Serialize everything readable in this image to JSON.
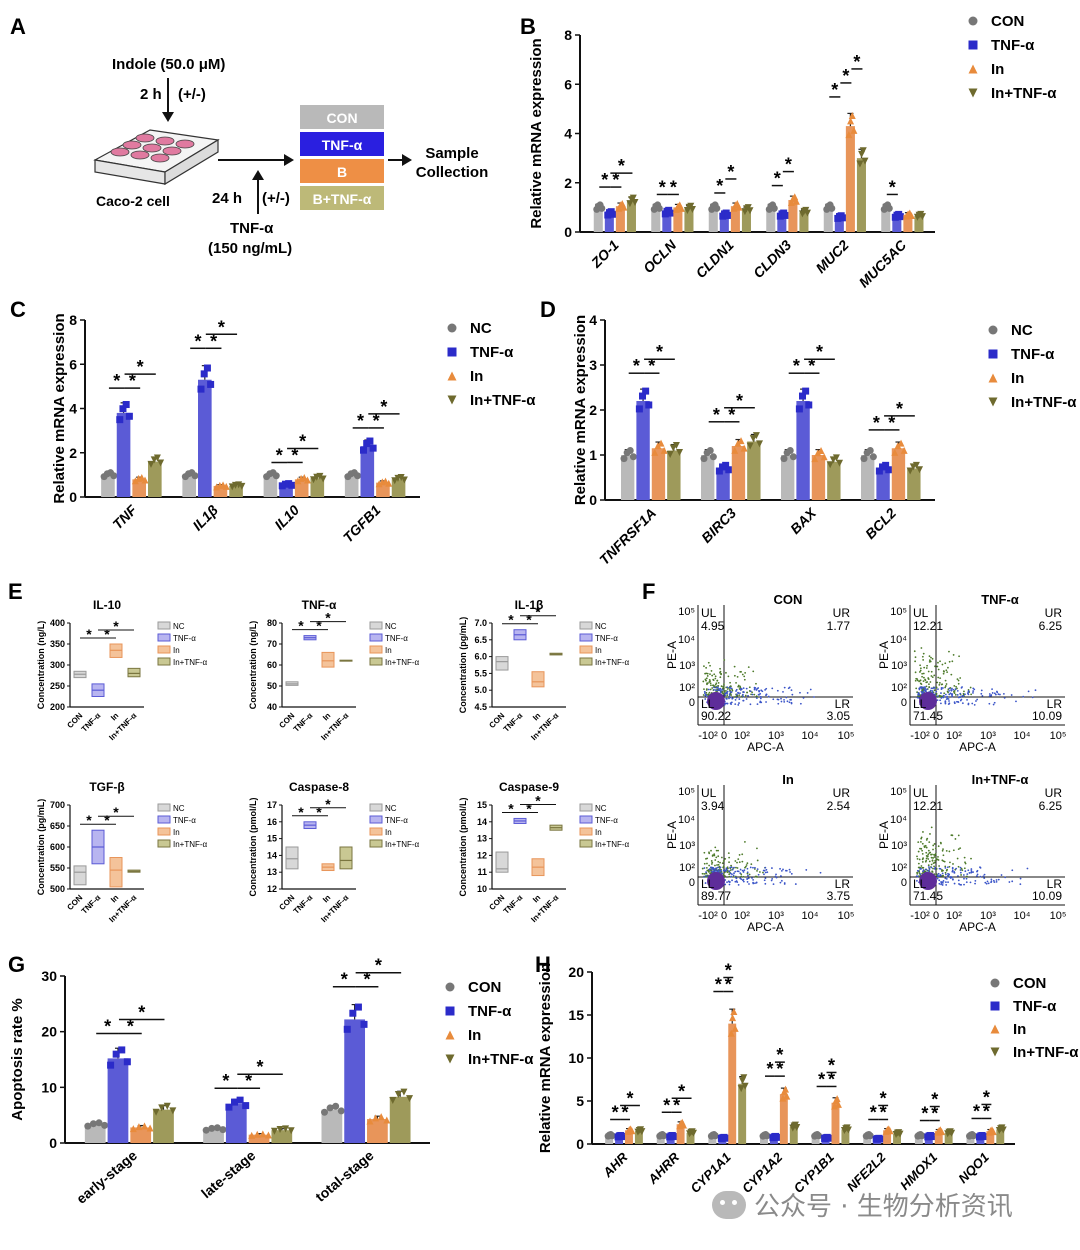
{
  "colors": {
    "CON": "#b9b9b9",
    "TNF": "#5b5bd6",
    "In": "#e8955a",
    "InTNF": "#9e9a5b",
    "dotCON": "#777777",
    "dotTNF": "#2b2bc9",
    "dotIn": "#e88b3c",
    "dotInTNF": "#6e6a2e"
  },
  "panelA": {
    "letter": "A",
    "indole": "Indole (50.0 μM)",
    "time1": "2 h",
    "pm1": "(+/-)",
    "cell": "Caco-2 cell",
    "time2": "24 h",
    "pm2": "(+/-)",
    "tnf": "TNF-α",
    "tnfconc": "(150 ng/mL)",
    "boxes": [
      "CON",
      "TNF-α",
      "B",
      "B+TNF-α"
    ],
    "sample1": "Sample",
    "sample2": "Collection"
  },
  "chart_data": [
    {
      "id": "B",
      "type": "bar",
      "ylabel": "Relative mRNA expression",
      "ylim": [
        0,
        8
      ],
      "yticks": [
        0,
        2,
        4,
        6,
        8
      ],
      "categories": [
        "ZO-1",
        "OCLN",
        "CLDN1",
        "CLDN3",
        "MUC2",
        "MUC5AC"
      ],
      "legend": [
        "CON",
        "TNF-α",
        "In",
        "In+TNF-α"
      ],
      "series": [
        {
          "name": "CON",
          "values": [
            1.0,
            1.0,
            1.0,
            1.0,
            1.0,
            1.0
          ]
        },
        {
          "name": "TNF-α",
          "values": [
            0.75,
            0.8,
            0.7,
            0.7,
            0.6,
            0.65
          ]
        },
        {
          "name": "In",
          "values": [
            1.05,
            1.0,
            1.05,
            1.3,
            4.3,
            0.7
          ]
        },
        {
          "name": "In+TNF-α",
          "values": [
            1.25,
            0.95,
            0.9,
            0.8,
            3.0,
            0.65
          ]
        }
      ]
    },
    {
      "id": "C",
      "type": "bar",
      "ylabel": "Relative mRNA expression",
      "ylim": [
        0,
        8
      ],
      "yticks": [
        0,
        2,
        4,
        6,
        8
      ],
      "categories": [
        "TNF",
        "IL1β",
        "IL10",
        "TGFB1"
      ],
      "legend": [
        "NC",
        "TNF-α",
        "In",
        "In+TNF-α"
      ],
      "series": [
        {
          "name": "NC",
          "values": [
            1.0,
            1.0,
            1.0,
            1.0
          ]
        },
        {
          "name": "TNF-α",
          "values": [
            3.8,
            5.3,
            0.55,
            2.3
          ]
        },
        {
          "name": "In",
          "values": [
            0.8,
            0.5,
            0.8,
            0.65
          ]
        },
        {
          "name": "In+TNF-α",
          "values": [
            1.6,
            0.5,
            0.85,
            0.8
          ]
        }
      ]
    },
    {
      "id": "D",
      "type": "bar",
      "ylabel": "Relative mRNA expression",
      "ylim": [
        0,
        4
      ],
      "yticks": [
        0,
        1,
        2,
        3,
        4
      ],
      "categories": [
        "TNFRSF1A",
        "BIRC3",
        "BAX",
        "BCL2"
      ],
      "legend": [
        "NC",
        "TNF-α",
        "In",
        "In+TNF-α"
      ],
      "series": [
        {
          "name": "NC",
          "values": [
            1.0,
            1.0,
            1.0,
            1.0
          ]
        },
        {
          "name": "TNF-α",
          "values": [
            2.2,
            0.7,
            2.2,
            0.7
          ]
        },
        {
          "name": "In",
          "values": [
            1.15,
            1.2,
            1.0,
            1.15
          ]
        },
        {
          "name": "In+TNF-α",
          "values": [
            1.1,
            1.3,
            0.85,
            0.7
          ]
        }
      ]
    },
    {
      "id": "G",
      "type": "bar",
      "ylabel": "Apoptosis rate %",
      "ylim": [
        0,
        30
      ],
      "yticks": [
        0,
        10,
        20,
        30
      ],
      "categories": [
        "early-stage",
        "late-stage",
        "total-stage"
      ],
      "legend": [
        "CON",
        "TNF-α",
        "In",
        "In+TNF-α"
      ],
      "series": [
        {
          "name": "CON",
          "values": [
            3.3,
            2.5,
            6.0
          ]
        },
        {
          "name": "TNF-α",
          "values": [
            15.2,
            7.0,
            22.2
          ]
        },
        {
          "name": "In",
          "values": [
            2.8,
            1.5,
            4.3
          ]
        },
        {
          "name": "In+TNF-α",
          "values": [
            6.0,
            2.3,
            8.3
          ]
        }
      ]
    },
    {
      "id": "H",
      "type": "bar",
      "ylabel": "Relative mRNA expression",
      "ylim": [
        0,
        20
      ],
      "yticks": [
        0,
        5,
        10,
        15,
        20
      ],
      "categories": [
        "AHR",
        "AHRR",
        "CYP1A1",
        "CYP1A2",
        "CYP1B1",
        "NFE2L2",
        "HMOX1",
        "NQO1"
      ],
      "legend": [
        "CON",
        "TNF-α",
        "In",
        "In+TNF-α"
      ],
      "series": [
        {
          "name": "CON",
          "values": [
            1.0,
            1.0,
            1.0,
            1.0,
            1.0,
            1.0,
            1.0,
            1.0
          ]
        },
        {
          "name": "TNF-α",
          "values": [
            0.9,
            0.9,
            0.7,
            0.8,
            0.7,
            0.6,
            0.9,
            0.9
          ]
        },
        {
          "name": "In",
          "values": [
            1.6,
            2.3,
            14.0,
            5.8,
            4.8,
            1.6,
            1.5,
            1.5
          ]
        },
        {
          "name": "In+TNF-α",
          "values": [
            1.5,
            1.3,
            7.0,
            2.0,
            1.7,
            1.2,
            1.3,
            1.7
          ]
        }
      ]
    },
    {
      "id": "E",
      "type": "box",
      "subpanels": [
        {
          "title": "IL-10",
          "ylabel": "Concentration (ng/L)",
          "yticks": [
            200,
            250,
            300,
            350,
            400
          ],
          "ylim": [
            200,
            400
          ],
          "boxes": [
            [
              270,
              285,
              278
            ],
            [
              225,
              255,
              240
            ],
            [
              318,
              350,
              335
            ],
            [
              272,
              292,
              280
            ]
          ]
        },
        {
          "title": "TNF-α",
          "ylabel": "Concentration (ng/L)",
          "yticks": [
            40,
            50,
            60,
            70,
            80
          ],
          "ylim": [
            40,
            80
          ],
          "boxes": [
            [
              50.3,
              52,
              51
            ],
            [
              72,
              74,
              73
            ],
            [
              59,
              66,
              62
            ],
            [
              62,
              62.3,
              62.1
            ]
          ]
        },
        {
          "title": "IL-1β",
          "ylabel": "Concentration (pg/mL)",
          "yticks": [
            "4.5",
            "5.0",
            "5.5",
            "6.0",
            "6.5",
            "7.0"
          ],
          "ylim": [
            4.5,
            7.0
          ],
          "boxes": [
            [
              5.6,
              6.0,
              5.85
            ],
            [
              6.5,
              6.8,
              6.65
            ],
            [
              5.1,
              5.55,
              5.25
            ],
            [
              6.05,
              6.1,
              6.07
            ]
          ]
        },
        {
          "title": "TGF-β",
          "ylabel": "Concentration (pg/mL)",
          "yticks": [
            500,
            550,
            600,
            650,
            700
          ],
          "ylim": [
            500,
            700
          ],
          "boxes": [
            [
              510,
              555,
              540
            ],
            [
              560,
              640,
              600
            ],
            [
              505,
              575,
              545
            ],
            [
              540,
              545,
              542
            ]
          ]
        },
        {
          "title": "Caspase-8",
          "ylabel": "Concentration (pmol/L)",
          "yticks": [
            12,
            13,
            14,
            15,
            16,
            17
          ],
          "ylim": [
            12,
            17
          ],
          "boxes": [
            [
              13.2,
              14.5,
              13.8
            ],
            [
              15.6,
              16.0,
              15.8
            ],
            [
              13.1,
              13.5,
              13.3
            ],
            [
              13.2,
              14.5,
              13.7
            ]
          ]
        },
        {
          "title": "Caspase-9",
          "ylabel": "Concentration (pmol/L)",
          "yticks": [
            10,
            11,
            12,
            13,
            14,
            15
          ],
          "ylim": [
            10,
            15
          ],
          "boxes": [
            [
              11.0,
              12.2,
              11.2
            ],
            [
              13.9,
              14.2,
              14.05
            ],
            [
              10.8,
              11.8,
              11.3
            ],
            [
              13.5,
              13.8,
              13.65
            ]
          ]
        }
      ],
      "categories": [
        "CON",
        "TNF-α",
        "In",
        "In+TNF-α"
      ],
      "legend": [
        "NC",
        "TNF-α",
        "In",
        "In+TNF-α"
      ]
    }
  ],
  "flow": {
    "letter": "F",
    "xlabel": "APC-A",
    "ylabel": "PE-A",
    "xticks": [
      "-10²",
      "0",
      "10²",
      "10³",
      "10⁴",
      "10⁵"
    ],
    "yticks": [
      "10⁵",
      "10⁴",
      "10³",
      "10²",
      "0"
    ],
    "quad": [
      "UL",
      "UR",
      "LL",
      "LR"
    ],
    "plots": [
      {
        "title": "CON",
        "UL": "4.95",
        "UR": "1.77",
        "LL": "90.22",
        "LR": "3.05"
      },
      {
        "title": "TNF-α",
        "UL": "12.21",
        "UR": "6.25",
        "LL": "71.45",
        "LR": "10.09"
      },
      {
        "title": "In",
        "UL": "3.94",
        "UR": "2.54",
        "LL": "89.77",
        "LR": "3.75"
      },
      {
        "title": "In+TNF-α",
        "UL": "12.21",
        "UR": "6.25",
        "LL": "71.45",
        "LR": "10.09"
      }
    ]
  },
  "letters": {
    "B": "B",
    "C": "C",
    "D": "D",
    "E": "E",
    "G": "G",
    "H": "H"
  },
  "watermark": "公众号 · 生物分析资讯"
}
